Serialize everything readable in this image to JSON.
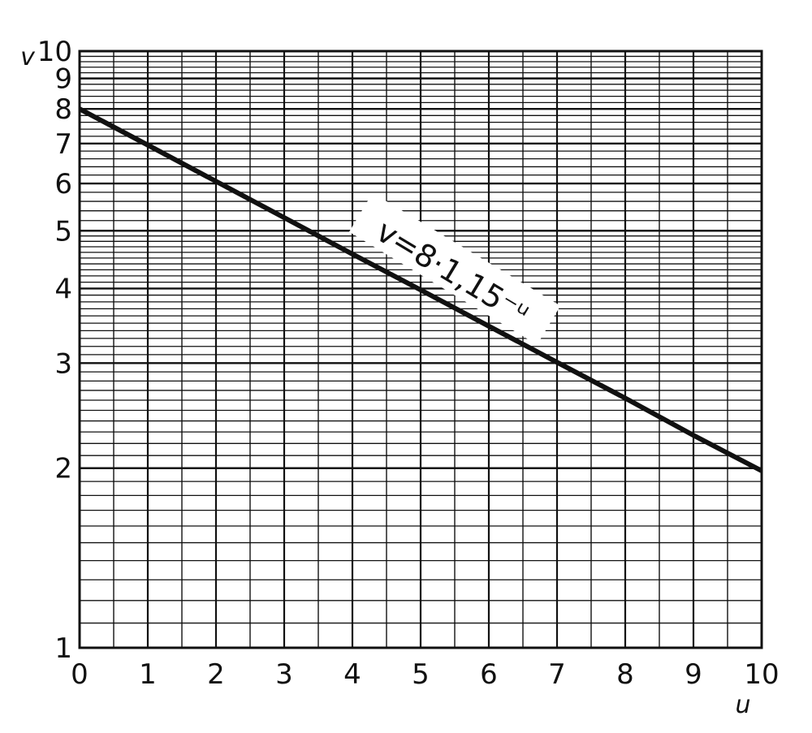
{
  "chart_data": {
    "type": "line",
    "title": "",
    "xlabel": "u",
    "ylabel": "v",
    "x_scale": "linear",
    "y_scale": "log",
    "xlim": [
      0,
      10
    ],
    "ylim": [
      1,
      10
    ],
    "grid": true,
    "legend": "none",
    "x_ticks": [
      0,
      1,
      2,
      3,
      4,
      5,
      6,
      7,
      8,
      9,
      10
    ],
    "x_tick_labels": [
      "0",
      "1",
      "2",
      "3",
      "4",
      "5",
      "6",
      "7",
      "8",
      "9",
      "10"
    ],
    "y_ticks": [
      1,
      2,
      3,
      4,
      5,
      6,
      7,
      8,
      9,
      10
    ],
    "y_tick_labels": [
      "1",
      "2",
      "3",
      "4",
      "5",
      "6",
      "7",
      "8",
      "9",
      "10"
    ],
    "series": [
      {
        "label": "v=8·1,15⁻ᵘ",
        "x": [
          0,
          1,
          2,
          3,
          4,
          5,
          6,
          7,
          8,
          9,
          10
        ],
        "y": [
          8.0,
          6.96,
          6.05,
          5.26,
          4.57,
          3.98,
          3.46,
          3.01,
          2.62,
          2.27,
          1.98
        ]
      }
    ],
    "annotation": "v=8·1,15⁻ᵘ",
    "colors": {
      "line": "#111111",
      "grid": "#111111",
      "background": "#ffffff"
    }
  }
}
